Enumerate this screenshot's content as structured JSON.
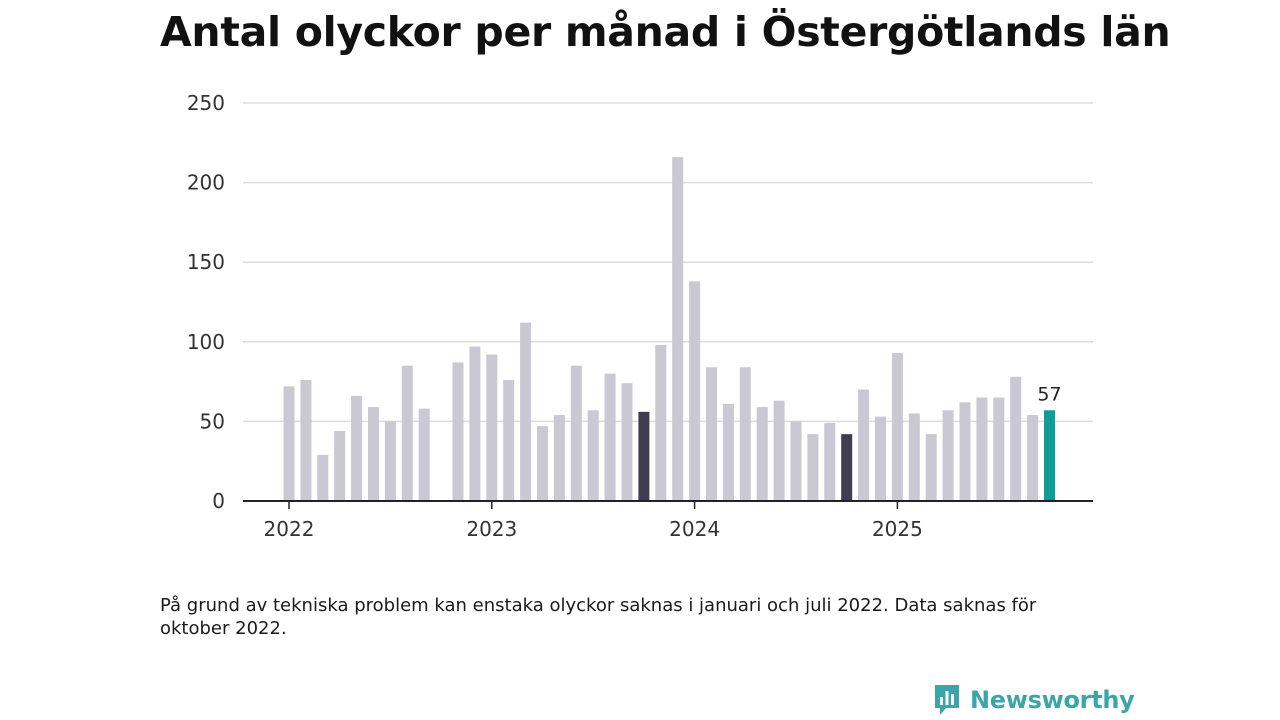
{
  "title": "Antal olyckor per månad i Östergötlands län",
  "note": "På grund av tekniska problem kan enstaka olyckor saknas i januari och juli 2022. Data saknas för oktober 2022.",
  "brand": {
    "name": "Newsworthy"
  },
  "colors": {
    "bar": "#c9c8d3",
    "highlight_dark": "#3f3d4f",
    "highlight_current": "#0f9e97",
    "grid": "#dddddd",
    "axis": "#222222",
    "text": "#333333",
    "brand": "#3aa6a8"
  },
  "chart_data": {
    "type": "bar",
    "title": "Antal olyckor per månad i Östergötlands län",
    "xlabel": "",
    "ylabel": "",
    "ylim": [
      0,
      250
    ],
    "yticks": [
      "0",
      "50",
      "100",
      "150",
      "200",
      "250"
    ],
    "x_tick_labels": [
      {
        "label": "2022",
        "index": 0
      },
      {
        "label": "2023",
        "index": 12
      },
      {
        "label": "2024",
        "index": 24
      },
      {
        "label": "2025",
        "index": 36
      }
    ],
    "categories": [
      "2022-01",
      "2022-02",
      "2022-03",
      "2022-04",
      "2022-05",
      "2022-06",
      "2022-07",
      "2022-08",
      "2022-09",
      "2022-10",
      "2022-11",
      "2022-12",
      "2023-01",
      "2023-02",
      "2023-03",
      "2023-04",
      "2023-05",
      "2023-06",
      "2023-07",
      "2023-08",
      "2023-09",
      "2023-10",
      "2023-11",
      "2023-12",
      "2024-01",
      "2024-02",
      "2024-03",
      "2024-04",
      "2024-05",
      "2024-06",
      "2024-07",
      "2024-08",
      "2024-09",
      "2024-10",
      "2024-11",
      "2024-12",
      "2025-01",
      "2025-02",
      "2025-03",
      "2025-04",
      "2025-05",
      "2025-06",
      "2025-07",
      "2025-08",
      "2025-09",
      "2025-10"
    ],
    "values": [
      72,
      76,
      29,
      44,
      66,
      59,
      50,
      85,
      58,
      null,
      87,
      97,
      92,
      76,
      112,
      47,
      54,
      85,
      57,
      80,
      74,
      56,
      98,
      216,
      138,
      84,
      61,
      84,
      59,
      63,
      50,
      42,
      49,
      42,
      70,
      53,
      93,
      55,
      42,
      57,
      62,
      65,
      65,
      78,
      54,
      57
    ],
    "highlight": {
      "dark": [
        21,
        33
      ],
      "current": 45
    },
    "value_labels": [
      {
        "index": 45,
        "text": "57"
      }
    ]
  }
}
